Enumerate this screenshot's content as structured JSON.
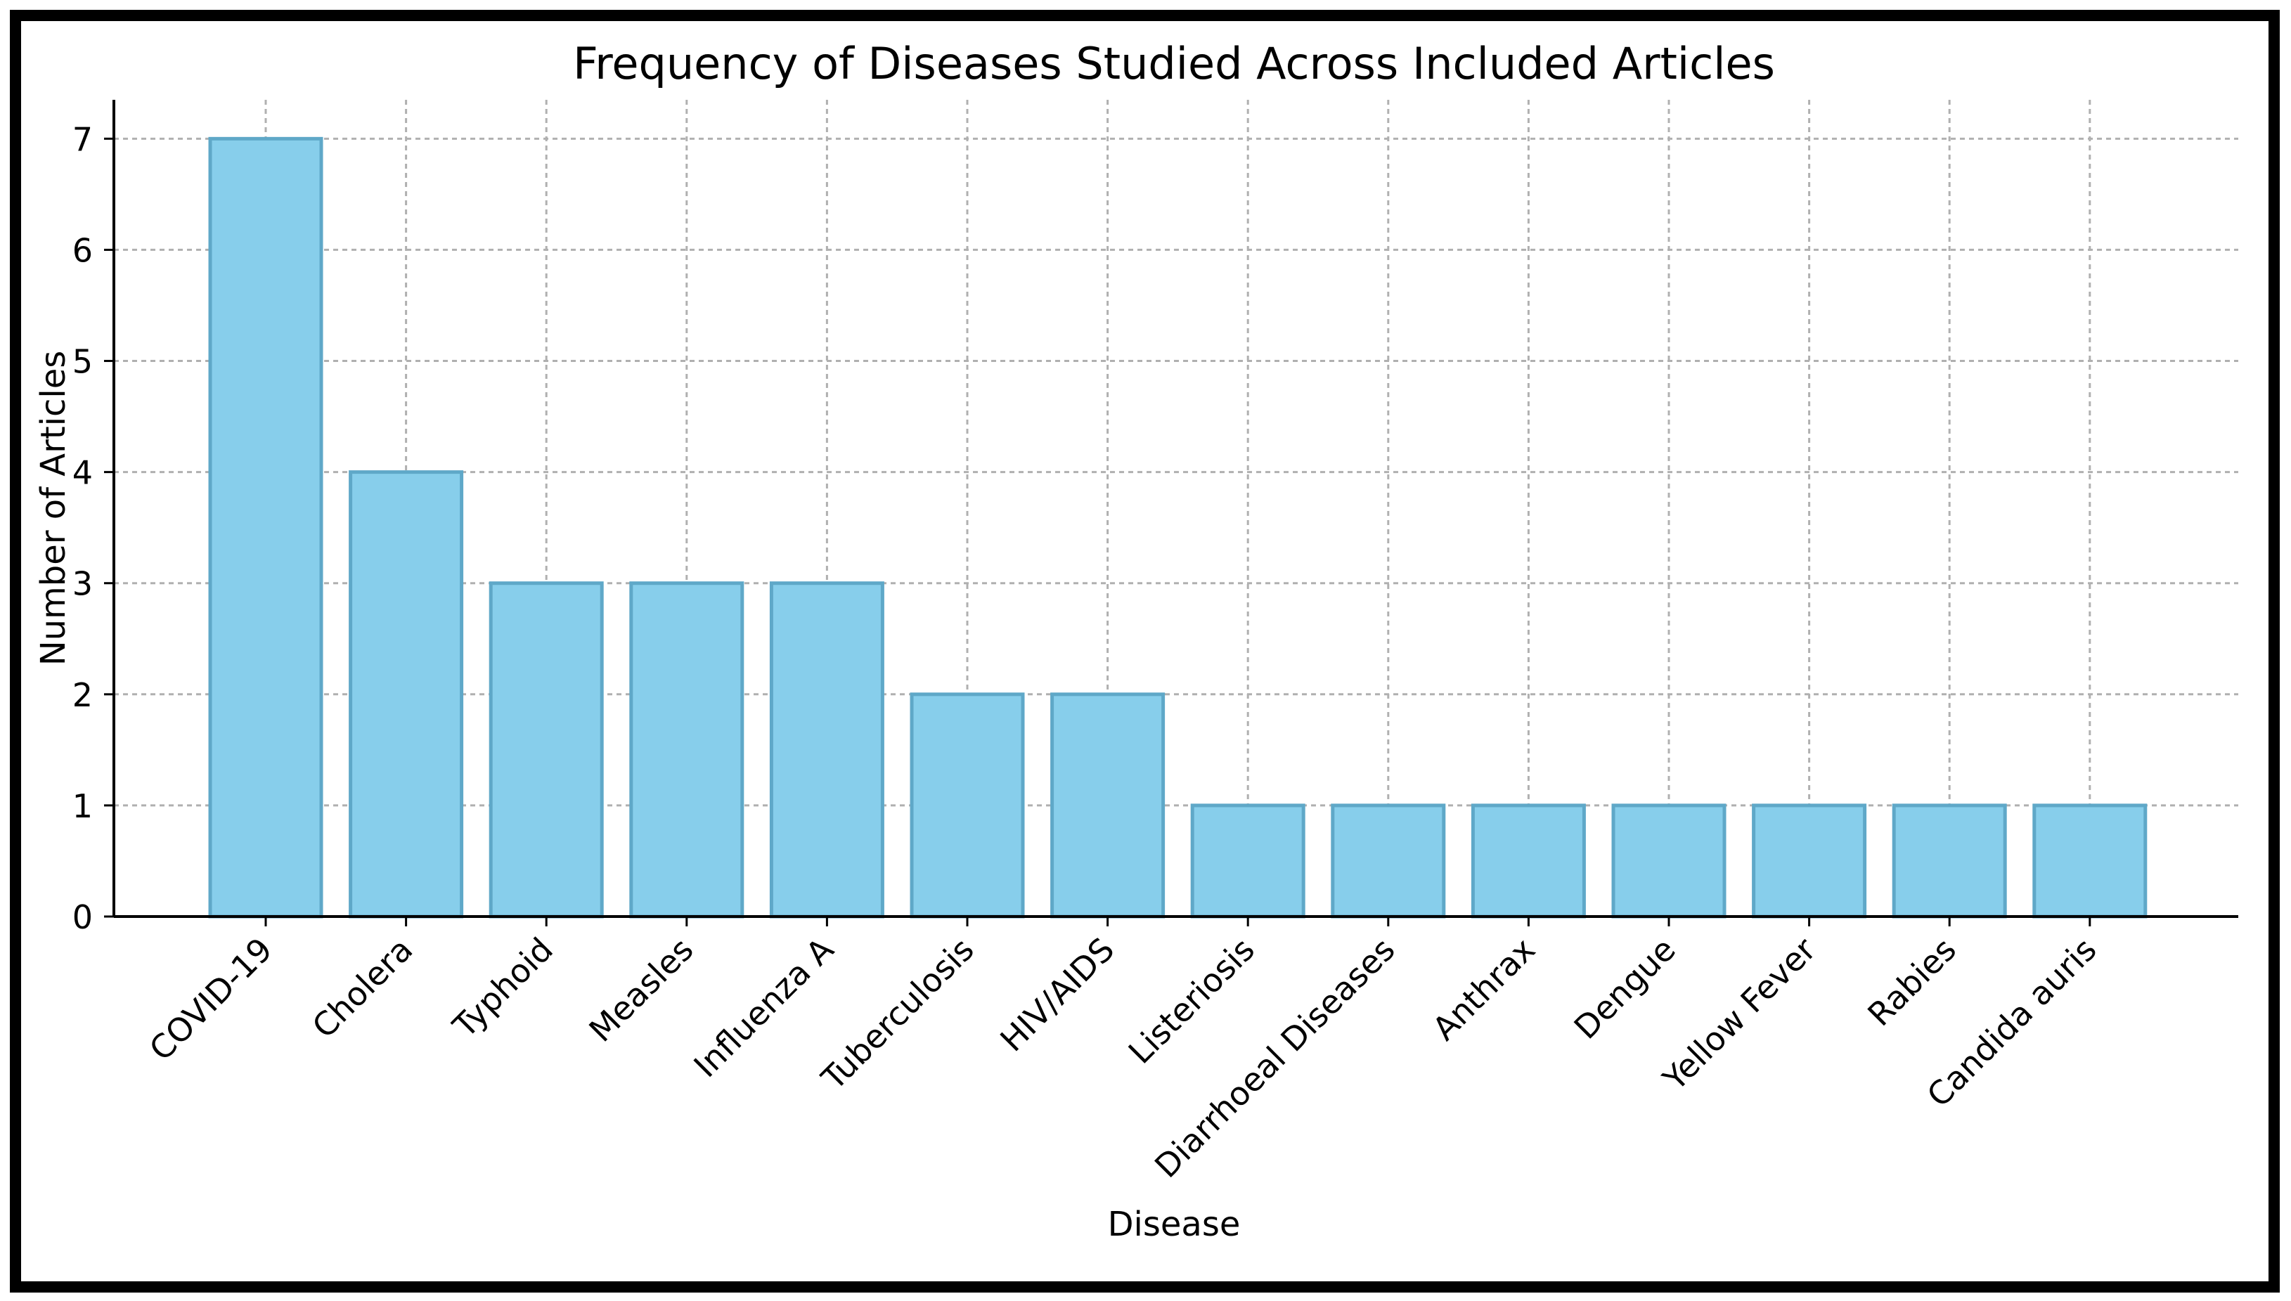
{
  "chart_data": {
    "type": "bar",
    "title": "Frequency of Diseases Studied Across Included Articles",
    "xlabel": "Disease",
    "ylabel": "Number of Articles",
    "categories": [
      "COVID-19",
      "Cholera",
      "Typhoid",
      "Measles",
      "Influenza A",
      "Tuberculosis",
      "HIV/AIDS",
      "Listeriosis",
      "Diarrhoeal Diseases",
      "Anthrax",
      "Dengue",
      "Yellow Fever",
      "Rabies",
      "Candida auris"
    ],
    "values": [
      7,
      4,
      3,
      3,
      3,
      2,
      2,
      1,
      1,
      1,
      1,
      1,
      1,
      1
    ],
    "yticks": [
      "0",
      "1",
      "2",
      "3",
      "4",
      "5",
      "6",
      "7"
    ],
    "ylim": [
      0,
      7.35
    ],
    "grid": true,
    "colors": {
      "bar_fill": "#87CEEB",
      "bar_edge": "#5fa8c8",
      "grid": "#b0b0b0",
      "axis": "#000000",
      "frame": "#000000"
    }
  }
}
